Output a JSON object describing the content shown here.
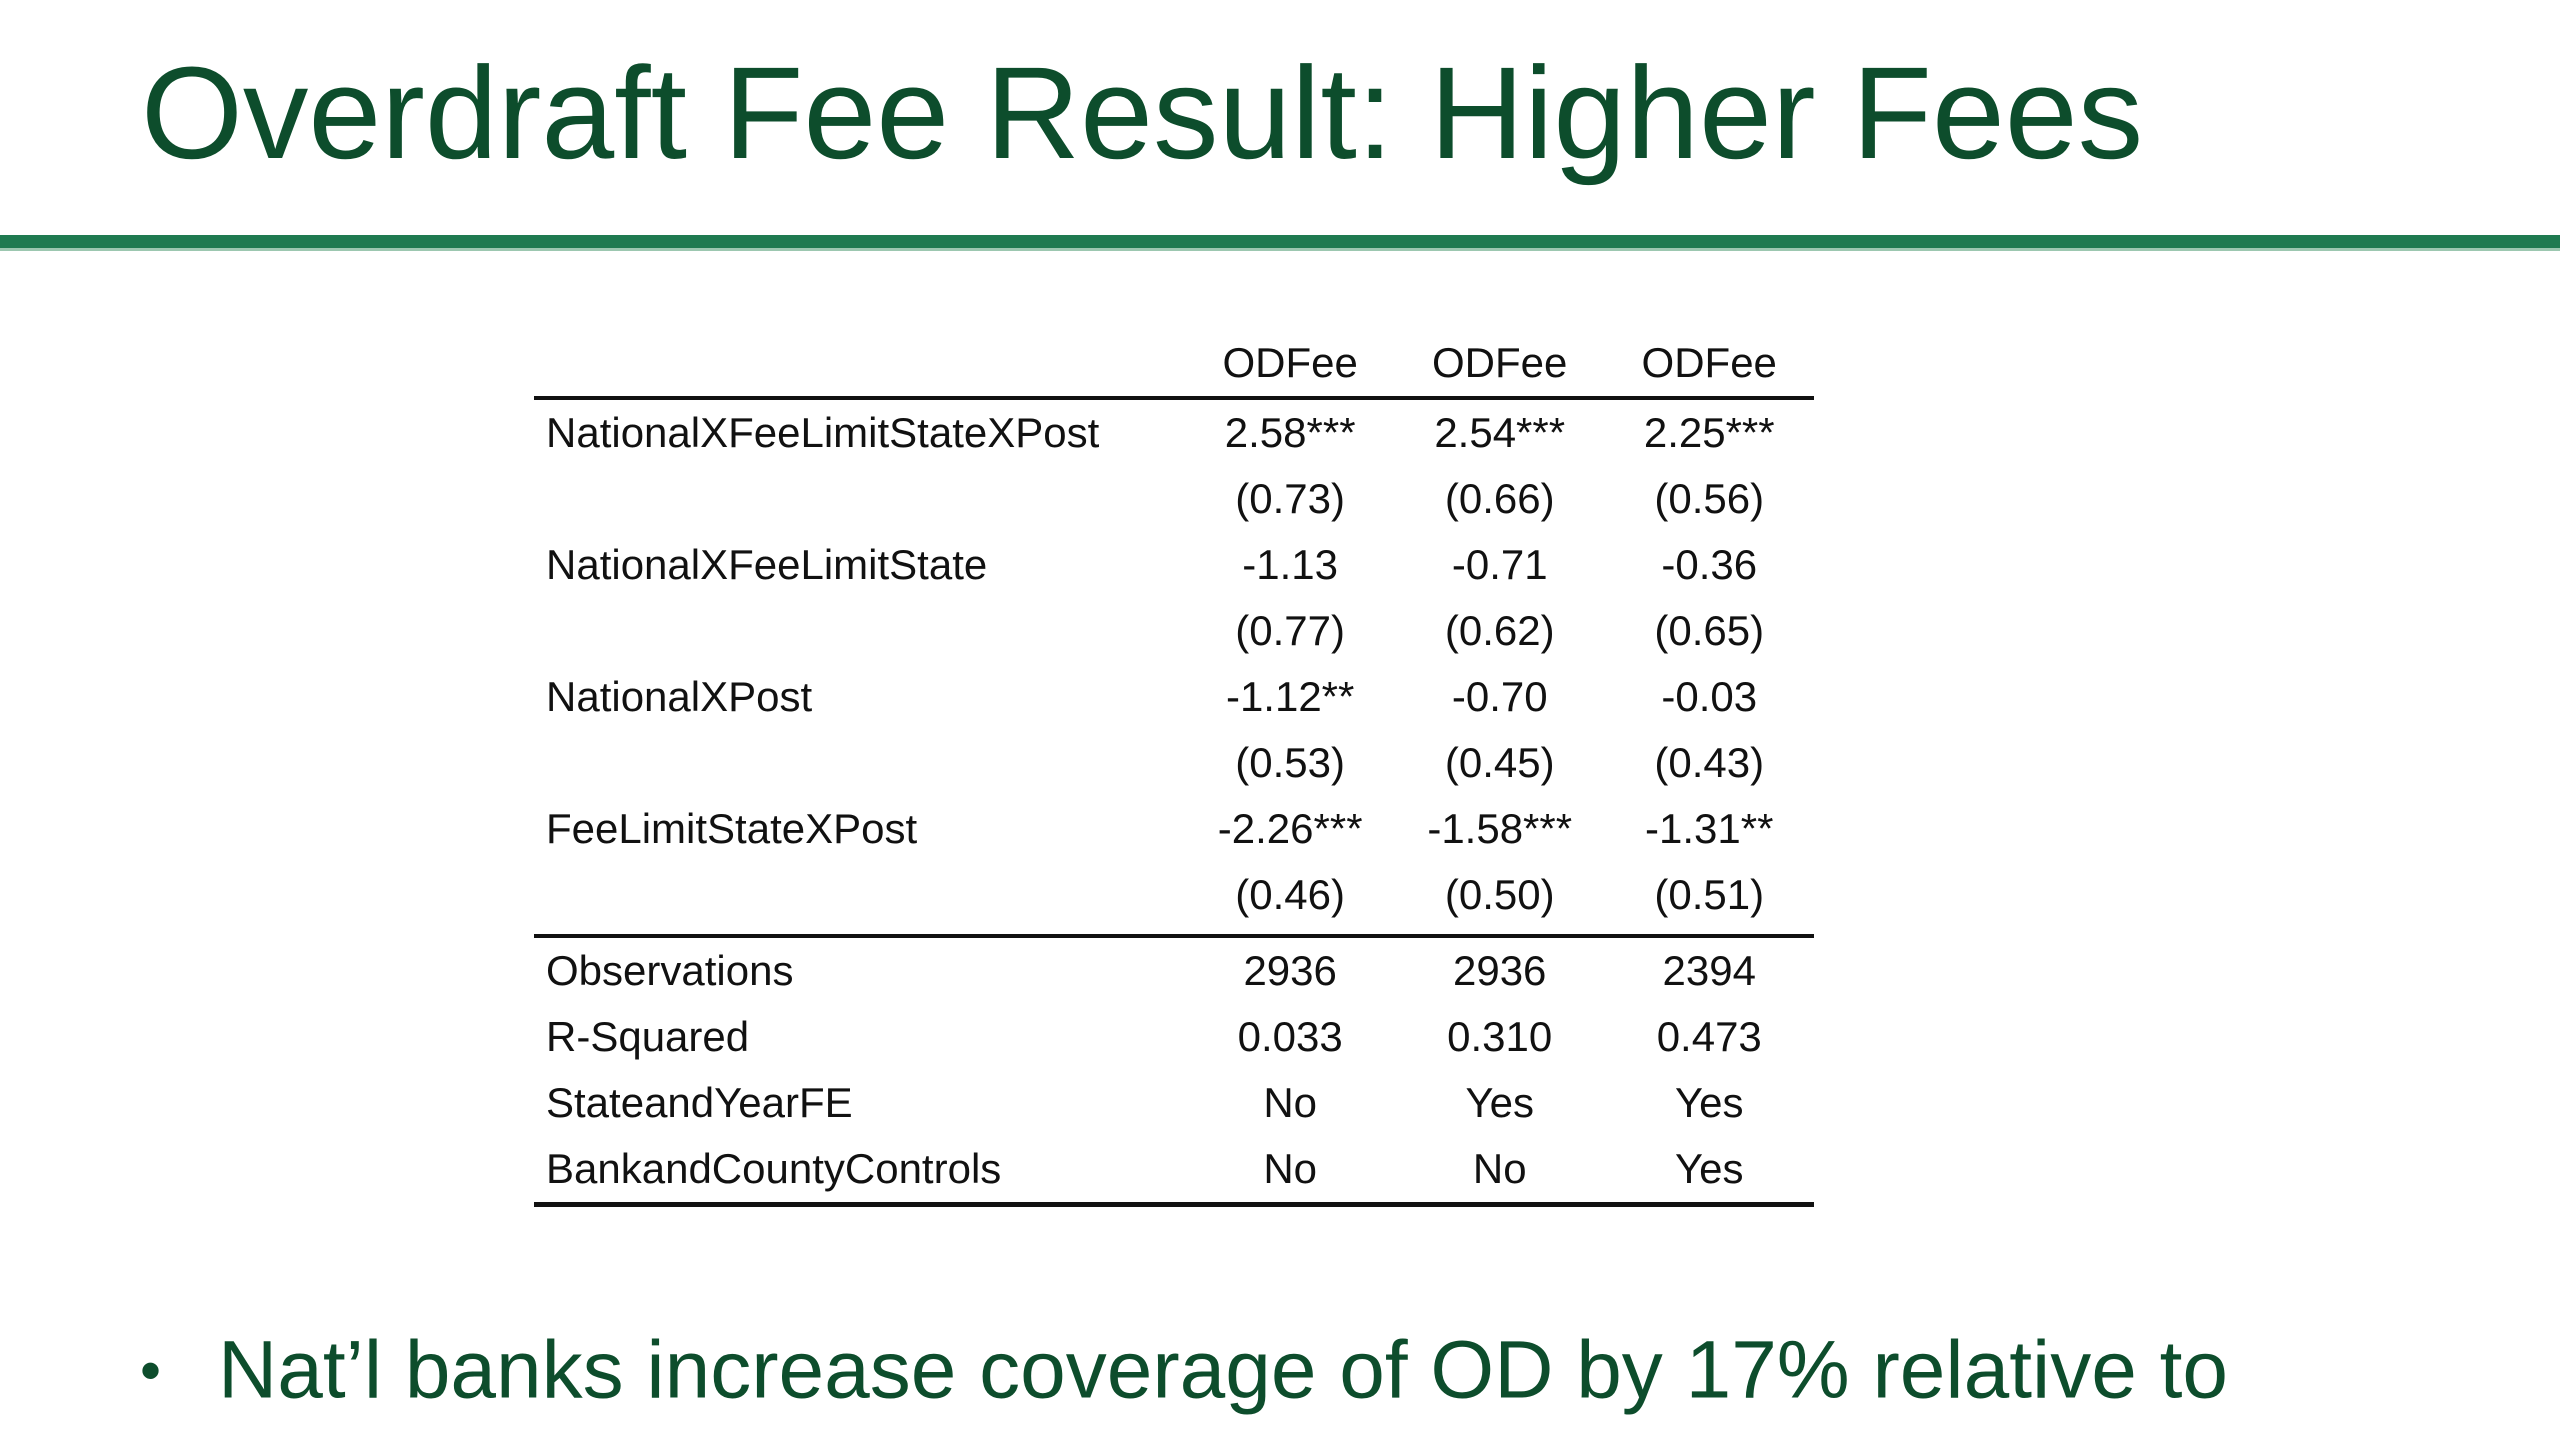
{
  "slide": {
    "title": "Overdraft Fee Result: Higher Fees",
    "bullet_marker": "•",
    "bullet_text": "Nat’l banks increase coverage of OD by 17% relative to"
  },
  "table": {
    "headers": [
      "",
      "ODFee",
      "ODFee",
      "ODFee"
    ],
    "rows": [
      {
        "label": "NationalXFeeLimitStateXPost",
        "values": [
          "2.58***",
          "2.54***",
          "2.25***"
        ]
      },
      {
        "label": "",
        "values": [
          "(0.73)",
          "(0.66)",
          "(0.56)"
        ]
      },
      {
        "label": "NationalXFeeLimitState",
        "values": [
          "-1.13",
          "-0.71",
          "-0.36"
        ]
      },
      {
        "label": "",
        "values": [
          "(0.77)",
          "(0.62)",
          "(0.65)"
        ]
      },
      {
        "label": "NationalXPost",
        "values": [
          "-1.12**",
          "-0.70",
          "-0.03"
        ]
      },
      {
        "label": "",
        "values": [
          "(0.53)",
          "(0.45)",
          "(0.43)"
        ]
      },
      {
        "label": "FeeLimitStateXPost",
        "values": [
          "-2.26***",
          "-1.58***",
          "-1.31**"
        ]
      },
      {
        "label": "",
        "values": [
          "(0.46)",
          "(0.50)",
          "(0.51)"
        ]
      },
      {
        "label": "Observations",
        "values": [
          "2936",
          "2936",
          "2394"
        ]
      },
      {
        "label": "R-Squared",
        "values": [
          "0.033",
          "0.310",
          "0.473"
        ]
      },
      {
        "label": "StateandYearFE",
        "values": [
          "No",
          "Yes",
          "Yes"
        ]
      },
      {
        "label": "BankandCountyControls",
        "values": [
          "No",
          "No",
          "Yes"
        ]
      }
    ]
  }
}
